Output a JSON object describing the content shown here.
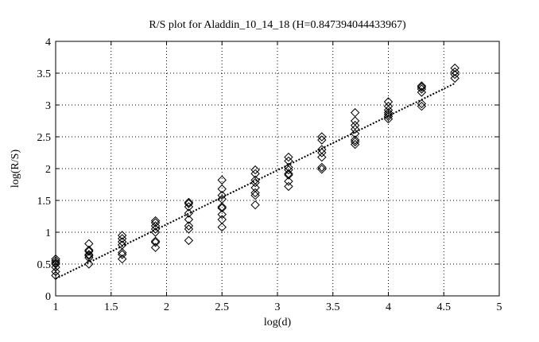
{
  "chart_data": {
    "type": "scatter",
    "title": "R/S plot for Aladdin_10_14_18 (H=0.847394044433967)",
    "xlabel": "log(d)",
    "ylabel": "log(R/S)",
    "xlim": [
      1,
      5
    ],
    "ylim": [
      0,
      4
    ],
    "x_ticks": [
      "1",
      "1.5",
      "2",
      "2.5",
      "3",
      "3.5",
      "4",
      "4.5",
      "5"
    ],
    "y_ticks": [
      "0",
      "0.5",
      "1",
      "1.5",
      "2",
      "2.5",
      "3",
      "3.5",
      "4"
    ],
    "grid": true,
    "marker": "diamond",
    "series": [
      {
        "points": [
          [
            1.0,
            0.32
          ],
          [
            1.0,
            0.38
          ],
          [
            1.0,
            0.45
          ],
          [
            1.0,
            0.5
          ],
          [
            1.0,
            0.52
          ],
          [
            1.0,
            0.55
          ],
          [
            1.0,
            0.58
          ],
          [
            1.3,
            0.5
          ],
          [
            1.3,
            0.6
          ],
          [
            1.3,
            0.63
          ],
          [
            1.3,
            0.65
          ],
          [
            1.3,
            0.7
          ],
          [
            1.3,
            0.72
          ],
          [
            1.3,
            0.82
          ],
          [
            1.6,
            0.58
          ],
          [
            1.6,
            0.65
          ],
          [
            1.6,
            0.68
          ],
          [
            1.6,
            0.8
          ],
          [
            1.6,
            0.85
          ],
          [
            1.6,
            0.9
          ],
          [
            1.6,
            0.95
          ],
          [
            1.9,
            0.76
          ],
          [
            1.9,
            0.84
          ],
          [
            1.9,
            0.86
          ],
          [
            1.9,
            1.0
          ],
          [
            1.9,
            1.05
          ],
          [
            1.9,
            1.1
          ],
          [
            1.9,
            1.15
          ],
          [
            1.9,
            1.18
          ],
          [
            2.2,
            0.87
          ],
          [
            2.2,
            1.05
          ],
          [
            2.2,
            1.1
          ],
          [
            2.2,
            1.2
          ],
          [
            2.2,
            1.3
          ],
          [
            2.2,
            1.4
          ],
          [
            2.2,
            1.45
          ],
          [
            2.2,
            1.47
          ],
          [
            2.5,
            1.08
          ],
          [
            2.5,
            1.2
          ],
          [
            2.5,
            1.28
          ],
          [
            2.5,
            1.38
          ],
          [
            2.5,
            1.4
          ],
          [
            2.5,
            1.52
          ],
          [
            2.5,
            1.58
          ],
          [
            2.5,
            1.68
          ],
          [
            2.5,
            1.82
          ],
          [
            2.8,
            1.43
          ],
          [
            2.8,
            1.58
          ],
          [
            2.8,
            1.62
          ],
          [
            2.8,
            1.7
          ],
          [
            2.8,
            1.78
          ],
          [
            2.8,
            1.82
          ],
          [
            2.8,
            1.92
          ],
          [
            2.8,
            1.98
          ],
          [
            3.1,
            1.72
          ],
          [
            3.1,
            1.8
          ],
          [
            3.1,
            1.9
          ],
          [
            3.1,
            1.92
          ],
          [
            3.1,
            1.98
          ],
          [
            3.1,
            2.02
          ],
          [
            3.1,
            2.12
          ],
          [
            3.1,
            2.18
          ],
          [
            3.4,
            1.99
          ],
          [
            3.4,
            2.02
          ],
          [
            3.4,
            2.18
          ],
          [
            3.4,
            2.25
          ],
          [
            3.4,
            2.3
          ],
          [
            3.4,
            2.45
          ],
          [
            3.4,
            2.5
          ],
          [
            3.7,
            2.38
          ],
          [
            3.7,
            2.42
          ],
          [
            3.7,
            2.45
          ],
          [
            3.7,
            2.55
          ],
          [
            3.7,
            2.62
          ],
          [
            3.7,
            2.68
          ],
          [
            3.7,
            2.75
          ],
          [
            3.7,
            2.88
          ],
          [
            4.0,
            2.78
          ],
          [
            4.0,
            2.82
          ],
          [
            4.0,
            2.85
          ],
          [
            4.0,
            2.88
          ],
          [
            4.0,
            2.92
          ],
          [
            4.0,
            2.98
          ],
          [
            4.0,
            3.05
          ],
          [
            4.3,
            2.98
          ],
          [
            4.3,
            3.02
          ],
          [
            4.3,
            3.2
          ],
          [
            4.3,
            3.25
          ],
          [
            4.3,
            3.28
          ],
          [
            4.3,
            3.3
          ],
          [
            4.6,
            3.42
          ],
          [
            4.6,
            3.48
          ],
          [
            4.6,
            3.52
          ],
          [
            4.6,
            3.58
          ]
        ]
      }
    ],
    "fit_line": {
      "x": [
        1.0,
        4.6
      ],
      "y": [
        0.27,
        3.34
      ],
      "style": "dotted"
    }
  }
}
